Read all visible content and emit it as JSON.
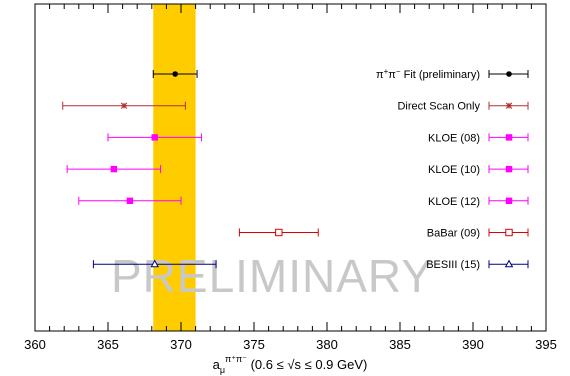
{
  "chart_data": {
    "type": "scatter",
    "subtype": "horizontal error bars with legend",
    "xlim": [
      360,
      395
    ],
    "x_ticks": [
      360,
      365,
      370,
      375,
      380,
      385,
      390,
      395
    ],
    "xlabel": {
      "prefix": "a",
      "mu": "μ",
      "superscript": "π⁺π⁻",
      "suffix": " (0.6 ≤ √s ≤ 0.9 GeV)"
    },
    "band": {
      "from": 368.1,
      "to": 371.0,
      "color": "#ffcc00"
    },
    "watermark": "PRELIMINARY",
    "grid": false,
    "legend_position": "right",
    "series": [
      {
        "name": "π⁺π⁻ Fit (preliminary)",
        "name_html": "π<tspan baseline-shift='super' font-size='8'>+</tspan>π<tspan baseline-shift='super' font-size='8'>−</tspan> Fit (preliminary)",
        "x": 369.6,
        "xerr_low": 1.5,
        "xerr_high": 1.5,
        "color": "#000000",
        "marker": "filled-circle"
      },
      {
        "name": "Direct Scan Only",
        "x": 366.1,
        "xerr_low": 4.2,
        "xerr_high": 4.2,
        "color": "#b03030",
        "marker": "star"
      },
      {
        "name": "KLOE (08)",
        "x": 368.2,
        "xerr_low": 3.2,
        "xerr_high": 3.2,
        "color": "#ff00ff",
        "marker": "filled-square"
      },
      {
        "name": "KLOE (10)",
        "x": 365.4,
        "xerr_low": 3.2,
        "xerr_high": 3.2,
        "color": "#ff00ff",
        "marker": "filled-square"
      },
      {
        "name": "KLOE (12)",
        "x": 366.5,
        "xerr_low": 3.5,
        "xerr_high": 3.5,
        "color": "#ff00ff",
        "marker": "filled-square"
      },
      {
        "name": "BaBar (09)",
        "x": 376.7,
        "xerr_low": 2.7,
        "xerr_high": 2.7,
        "color": "#dd0000",
        "marker": "open-square"
      },
      {
        "name": "BESIII (15)",
        "x": 368.2,
        "xerr_low": 4.2,
        "xerr_high": 4.2,
        "color": "#000080",
        "marker": "open-triangle"
      }
    ]
  }
}
